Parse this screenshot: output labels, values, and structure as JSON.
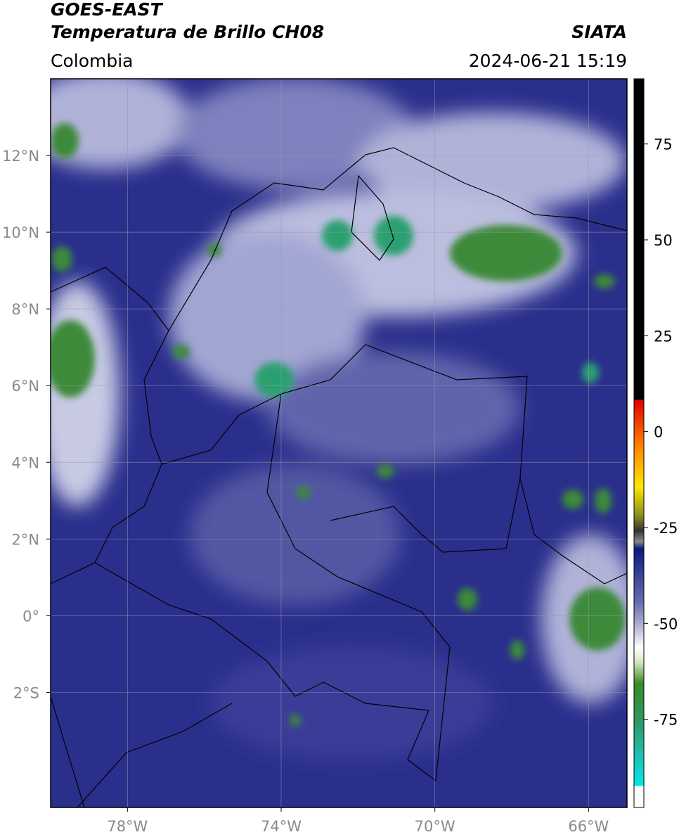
{
  "header": {
    "title": "GOES-EAST",
    "subtitle": "Temperatura de Brillo CH08",
    "source": "SIATA",
    "region": "Colombia",
    "datetime": "2024-06-21 15:19"
  },
  "map": {
    "lonlim": [
      -80,
      -65
    ],
    "latlim": [
      -5,
      14
    ],
    "lon_ticks": [
      {
        "value": -78,
        "label": "78°W"
      },
      {
        "value": -74,
        "label": "74°W"
      },
      {
        "value": -70,
        "label": "70°W"
      },
      {
        "value": -66,
        "label": "66°W"
      }
    ],
    "lat_ticks": [
      {
        "value": 12,
        "label": "12°N"
      },
      {
        "value": 10,
        "label": "10°N"
      },
      {
        "value": 8,
        "label": "8°N"
      },
      {
        "value": 6,
        "label": "6°N"
      },
      {
        "value": 4,
        "label": "4°N"
      },
      {
        "value": 2,
        "label": "2°N"
      },
      {
        "value": 0,
        "label": "0°"
      },
      {
        "value": -2,
        "label": "2°S"
      }
    ],
    "grid": true
  },
  "colorbar": {
    "lim": [
      -98,
      92
    ],
    "ticks": [
      75,
      50,
      25,
      0,
      -25,
      -50,
      -75
    ]
  }
}
